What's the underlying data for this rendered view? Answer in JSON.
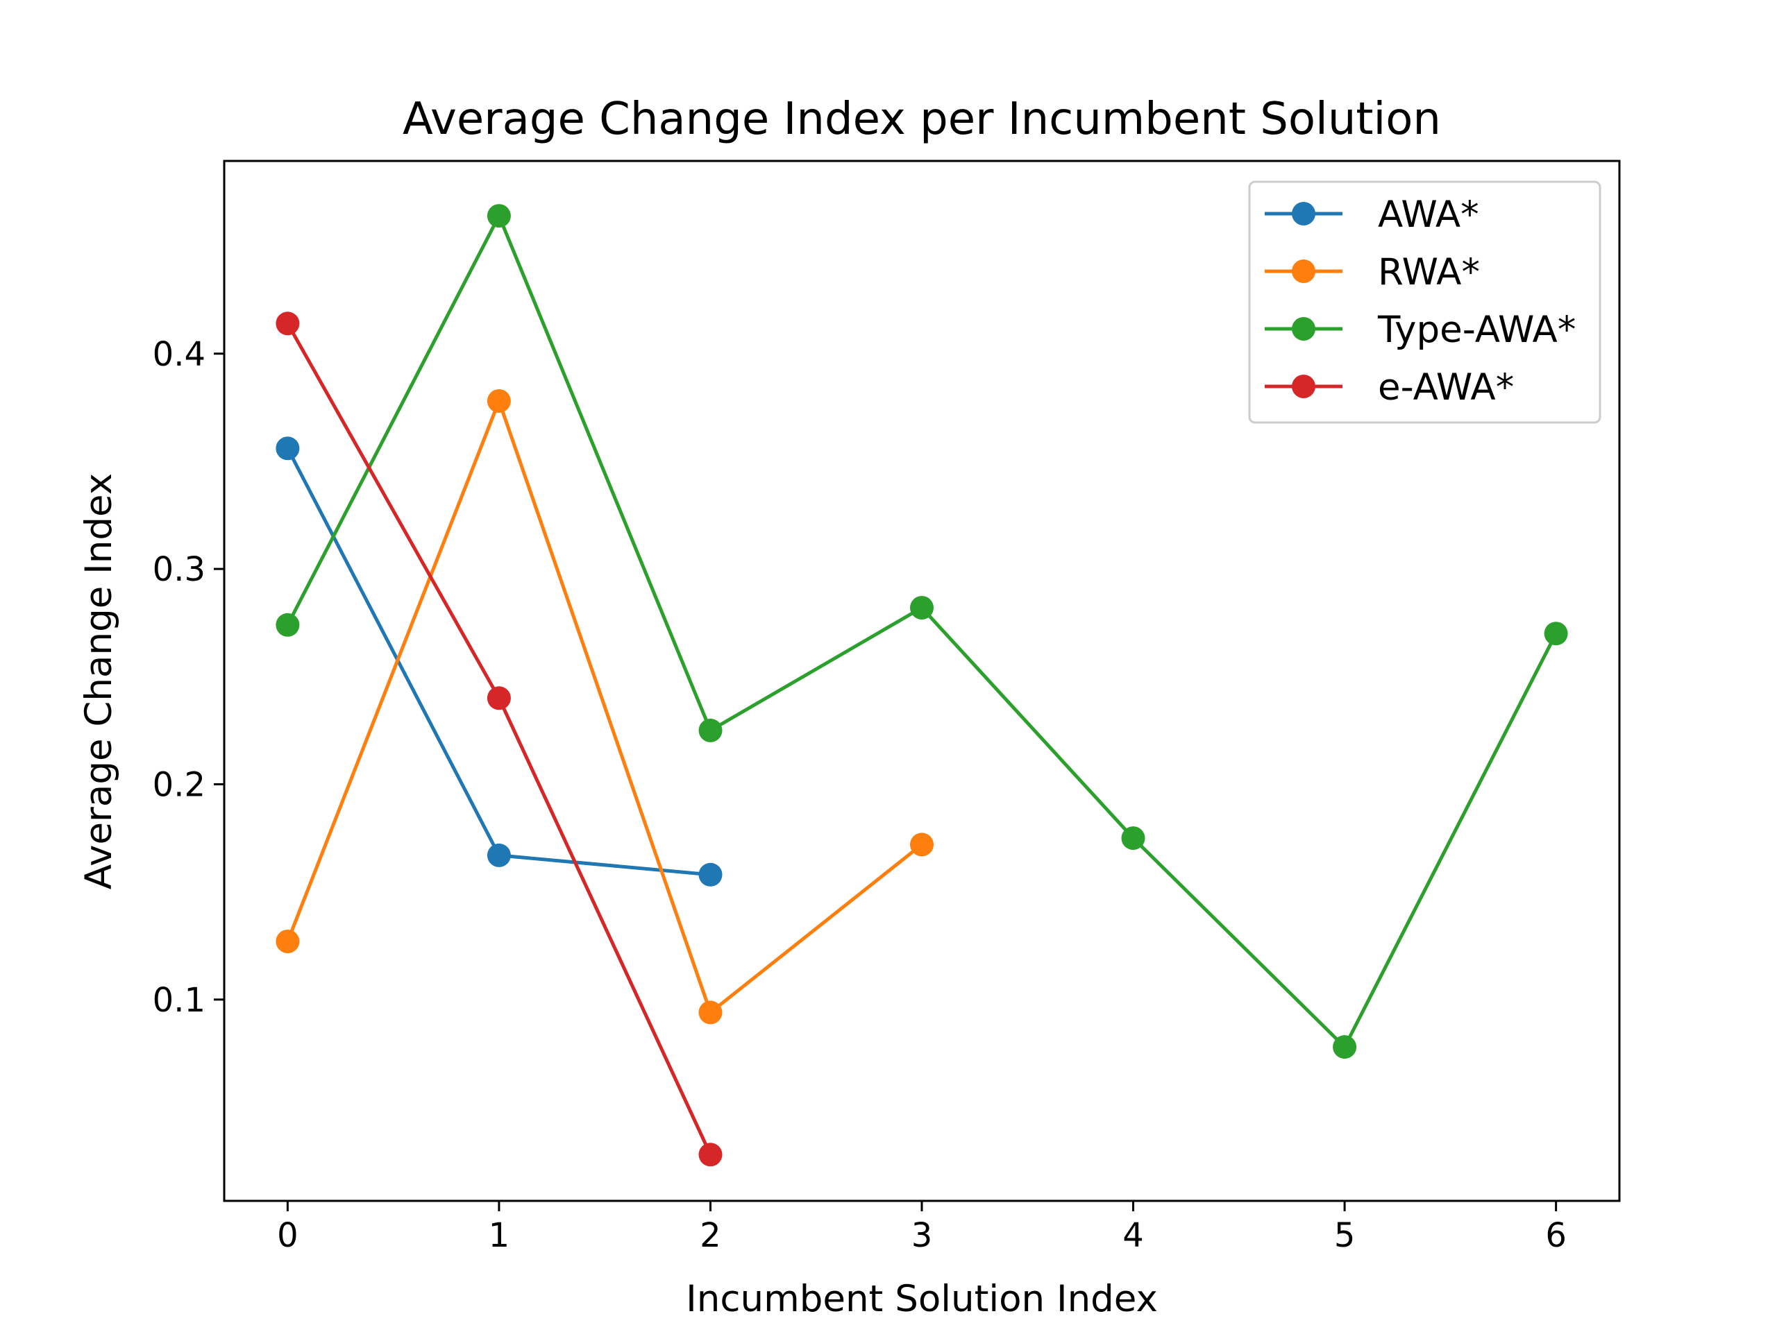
{
  "chart_data": {
    "type": "line",
    "title": "Average Change Index per Incumbent Solution",
    "xlabel": "Incumbent Solution Index",
    "ylabel": "Average Change Index",
    "xlim": [
      -0.3,
      6.3
    ],
    "ylim": [
      0.0065,
      0.4895
    ],
    "xticks": [
      0,
      1,
      2,
      3,
      4,
      5,
      6
    ],
    "yticks": [
      0.1,
      0.2,
      0.3,
      0.4
    ],
    "ytick_labels": [
      "0.1",
      "0.2",
      "0.3",
      "0.4"
    ],
    "grid": false,
    "legend_position": "top-right",
    "series": [
      {
        "name": "AWA*",
        "color": "#1f77b4",
        "x": [
          0,
          1,
          2
        ],
        "y": [
          0.356,
          0.167,
          0.158
        ]
      },
      {
        "name": "RWA*",
        "color": "#ff7f0e",
        "x": [
          0,
          1,
          2,
          3
        ],
        "y": [
          0.127,
          0.378,
          0.094,
          0.172
        ]
      },
      {
        "name": "Type-AWA*",
        "color": "#2ca02c",
        "x": [
          0,
          1,
          2,
          3,
          4,
          5,
          6
        ],
        "y": [
          0.274,
          0.464,
          0.225,
          0.282,
          0.175,
          0.078,
          0.27
        ]
      },
      {
        "name": "e-AWA*",
        "color": "#d62728",
        "x": [
          0,
          1,
          2
        ],
        "y": [
          0.414,
          0.24,
          0.028
        ]
      }
    ]
  }
}
